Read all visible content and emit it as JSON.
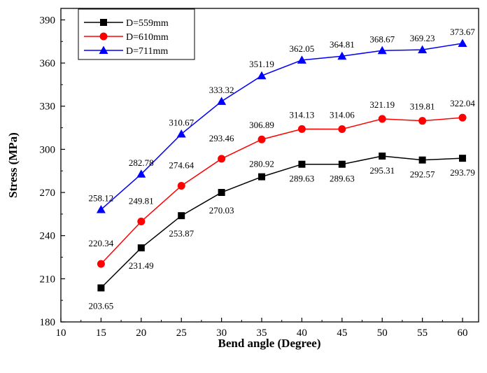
{
  "chart_data": {
    "type": "line",
    "title": "",
    "xlabel": "Bend angle (Degree)",
    "ylabel": "Stress (MPa)",
    "xlim": [
      10,
      62
    ],
    "ylim": [
      180,
      398
    ],
    "xticks": [
      10,
      15,
      20,
      25,
      30,
      35,
      40,
      45,
      50,
      55,
      60
    ],
    "yticks": [
      180,
      210,
      240,
      270,
      300,
      330,
      360,
      390
    ],
    "grid": false,
    "legend_position": "top-left",
    "x": [
      15,
      20,
      25,
      30,
      35,
      40,
      45,
      50,
      55,
      60
    ],
    "series": [
      {
        "name": "D=559mm",
        "color": "#000000",
        "marker": "square",
        "values": [
          203.65,
          231.49,
          253.87,
          270.03,
          280.92,
          289.63,
          289.63,
          295.31,
          292.57,
          293.79
        ],
        "labels": [
          "203.65",
          "231.49",
          "253.87",
          "270.03",
          "280.92",
          "289.63",
          "289.63",
          "295.31",
          "292.57",
          "293.79"
        ]
      },
      {
        "name": "D=610mm",
        "color": "#ff0000",
        "marker": "circle",
        "values": [
          220.34,
          249.81,
          274.64,
          293.46,
          306.89,
          314.13,
          314.06,
          321.19,
          319.81,
          322.04
        ],
        "labels": [
          "220.34",
          "249.81",
          "274.64",
          "293.46",
          "306.89",
          "314.13",
          "314.06",
          "321.19",
          "319.81",
          "322.04"
        ]
      },
      {
        "name": "D=711mm",
        "color": "#0000ff",
        "marker": "triangle",
        "values": [
          258.12,
          282.78,
          310.67,
          333.32,
          351.19,
          362.05,
          364.81,
          368.67,
          369.23,
          373.67
        ],
        "labels": [
          "258.12",
          "282.78",
          "310.67",
          "333.32",
          "351.19",
          "362.05",
          "364.81",
          "368.67",
          "369.23",
          "373.67"
        ]
      }
    ]
  }
}
